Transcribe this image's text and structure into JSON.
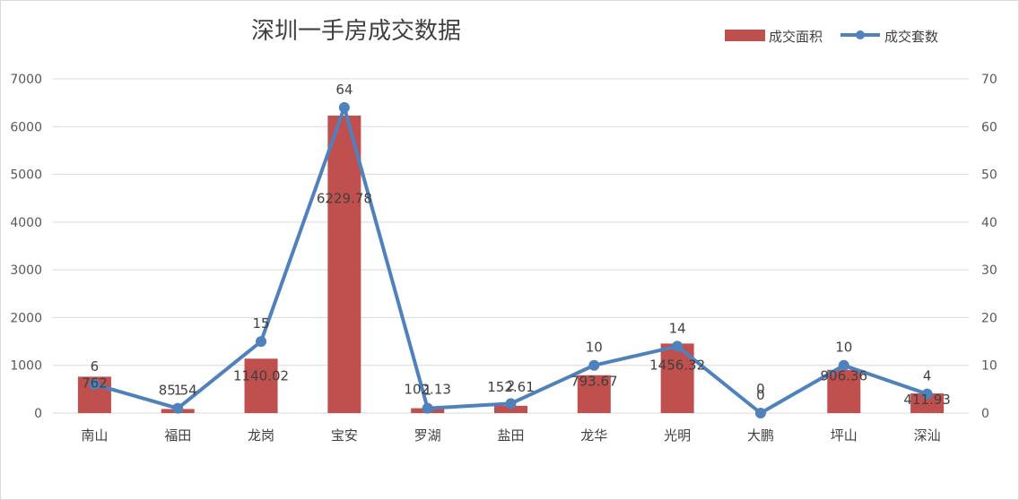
{
  "chart_data": {
    "type": "bar+line",
    "title": "深圳一手房成交数据",
    "categories": [
      "南山",
      "福田",
      "龙岗",
      "宝安",
      "罗湖",
      "盐田",
      "龙华",
      "光明",
      "大鹏",
      "坪山",
      "深汕"
    ],
    "series": [
      {
        "name": "成交面积",
        "kind": "bar",
        "axis": "left",
        "color": "#c0504d",
        "values": [
          762,
          85.54,
          1140.02,
          6229.78,
          102.13,
          152.61,
          793.67,
          1456.32,
          0,
          906.36,
          411.93
        ],
        "labels": [
          "762",
          "85.54",
          "1140.02",
          "6229.78",
          "102.13",
          "152.61",
          "793.67",
          "1456.32",
          "0",
          "906.36",
          "411.93"
        ]
      },
      {
        "name": "成交套数",
        "kind": "line",
        "axis": "right",
        "color": "#4f81bd",
        "values": [
          6,
          1,
          15,
          64,
          1,
          2,
          10,
          14,
          0,
          10,
          4
        ],
        "labels": [
          "6",
          "1",
          "15",
          "64",
          "1",
          "2",
          "10",
          "14",
          "0",
          "10",
          "4"
        ]
      }
    ],
    "y_left": {
      "min": 0,
      "max": 7000,
      "ticks": [
        "0",
        "1000",
        "2000",
        "3000",
        "4000",
        "5000",
        "6000",
        "7000"
      ]
    },
    "y_right": {
      "min": 0,
      "max": 70,
      "ticks": [
        "0",
        "10",
        "20",
        "30",
        "40",
        "50",
        "60",
        "70"
      ]
    },
    "grid": true,
    "legend_position": "top-right"
  }
}
